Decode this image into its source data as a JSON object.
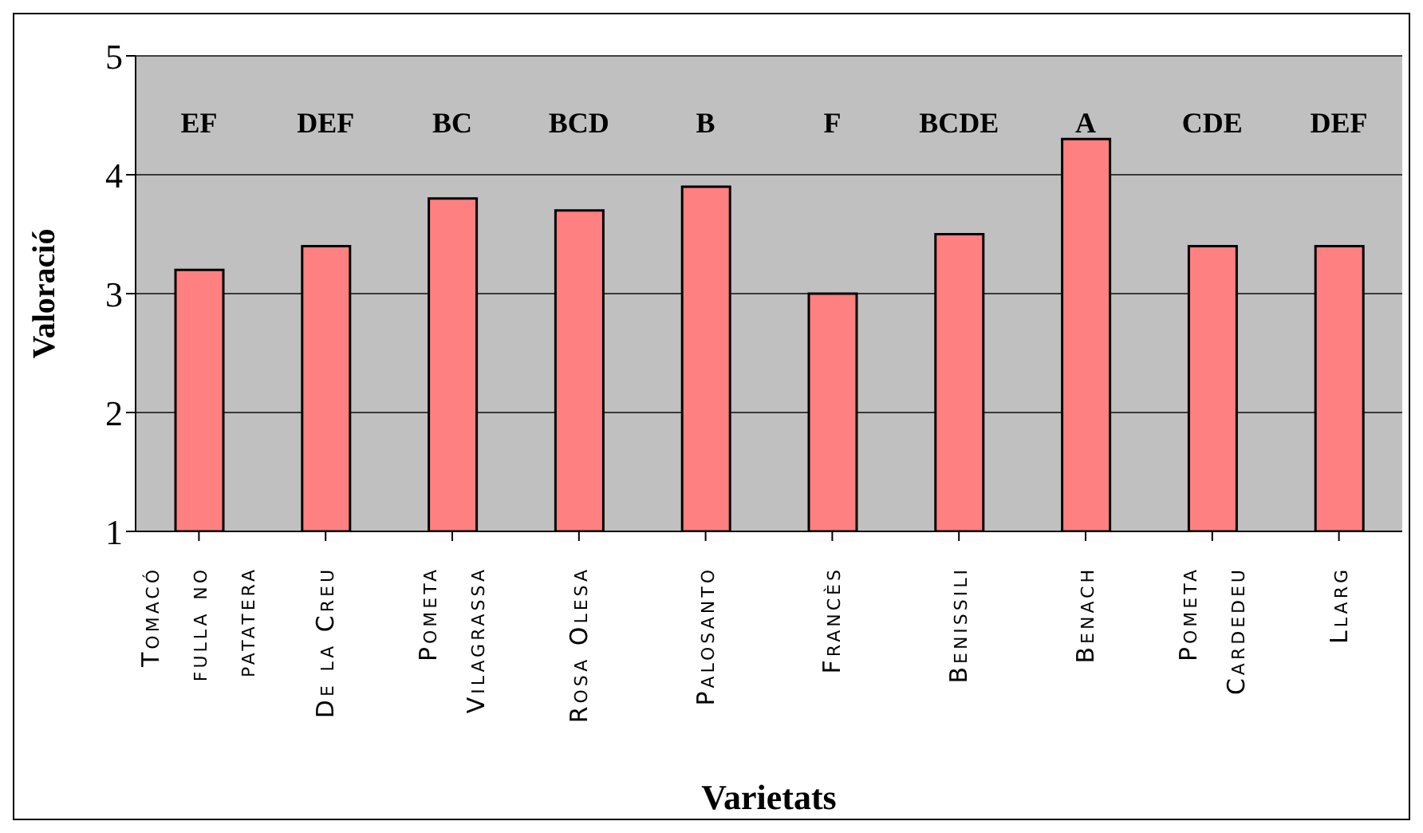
{
  "chart_data": {
    "type": "bar",
    "xlabel": "Varietats",
    "ylabel": "Valoració",
    "categories": [
      "Tomacó fulla no patatera",
      "De la Creu",
      "Pometa Vilagrassa",
      "Rosa Olesa",
      "Palosanto",
      "Francès",
      "Benissili",
      "Benach",
      "Pometa Cardedeu",
      "Llarg"
    ],
    "values": [
      3.2,
      3.4,
      3.8,
      3.7,
      3.9,
      3.0,
      3.5,
      4.3,
      3.4,
      3.4
    ],
    "color": "#ff8080",
    "ylim": [
      1,
      5
    ],
    "yticks": [
      1,
      2,
      3,
      4,
      5
    ],
    "grid": "y",
    "annotations": [
      "EF",
      "DEF",
      "BC",
      "BCD",
      "B",
      "F",
      "BCDE",
      "A",
      "CDE",
      "DEF"
    ]
  }
}
